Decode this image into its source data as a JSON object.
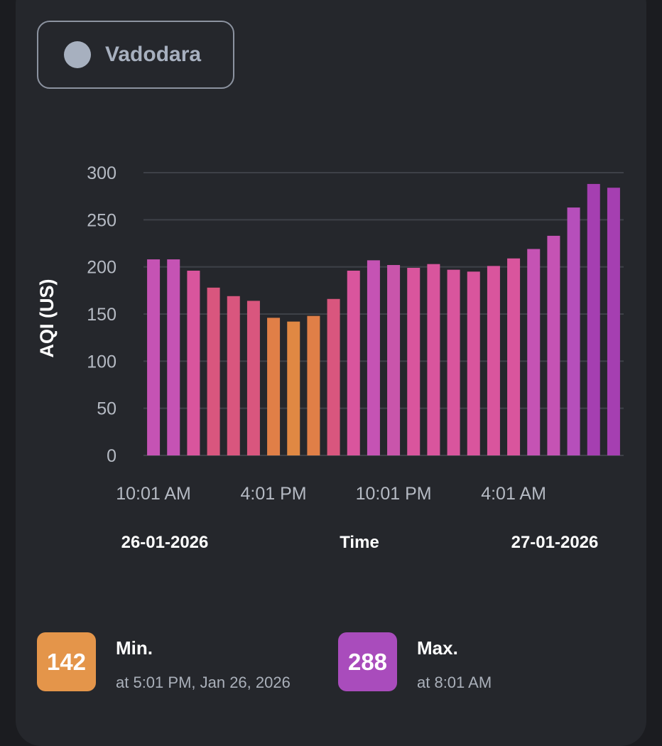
{
  "location": {
    "name": "Vadodara",
    "dot_color": "#a7b0bf"
  },
  "chart_data": {
    "type": "bar",
    "title": "",
    "ylabel": "AQI (US)",
    "xlabel": "Time",
    "ylim": [
      0,
      300
    ],
    "yticks": [
      0,
      50,
      100,
      150,
      200,
      250,
      300
    ],
    "grid": true,
    "x_tick_labels": [
      "10:01 AM",
      "4:01 PM",
      "10:01 PM",
      "4:01 AM"
    ],
    "date_labels": [
      "26-01-2026",
      "27-01-2026"
    ],
    "categories": [
      "10:01 AM",
      "11:01 AM",
      "12:01 PM",
      "1:01 PM",
      "2:01 PM",
      "3:01 PM",
      "4:01 PM",
      "5:01 PM",
      "6:01 PM",
      "7:01 PM",
      "8:01 PM",
      "9:01 PM",
      "10:01 PM",
      "11:01 PM",
      "12:01 AM",
      "1:01 AM",
      "2:01 AM",
      "3:01 AM",
      "4:01 AM",
      "5:01 AM",
      "6:01 AM",
      "7:01 AM",
      "8:01 AM",
      "9:01 AM"
    ],
    "values": [
      208,
      208,
      196,
      178,
      169,
      164,
      146,
      142,
      148,
      166,
      196,
      207,
      202,
      199,
      203,
      197,
      195,
      201,
      209,
      219,
      233,
      263,
      288,
      284
    ],
    "colors": [
      "#c553b4",
      "#c553b4",
      "#d9559d",
      "#d9567e",
      "#d9567e",
      "#d9567e",
      "#e07f47",
      "#e08843",
      "#e07f47",
      "#d9567e",
      "#d9559d",
      "#c553b4",
      "#c955ab",
      "#d9559d",
      "#d9559d",
      "#d9559d",
      "#d9559d",
      "#d9559d",
      "#d9559d",
      "#c553b4",
      "#c553b4",
      "#b64fbb",
      "#a53fb1",
      "#a53fb1"
    ]
  },
  "summary": {
    "min": {
      "value": "142",
      "label": "Min.",
      "subtitle": "at 5:01 PM, Jan 26, 2026",
      "color": "#e4954a"
    },
    "max": {
      "value": "288",
      "label": "Max.",
      "subtitle": "at 8:01 AM",
      "color": "#a94cbc"
    }
  }
}
